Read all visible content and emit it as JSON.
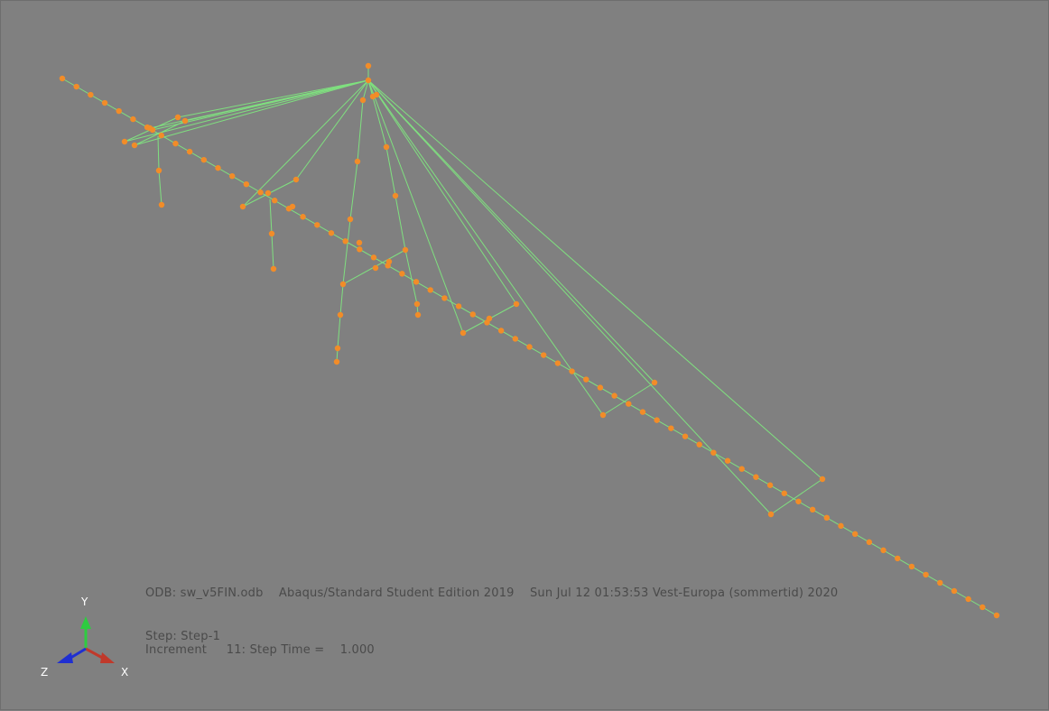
{
  "info": {
    "odb_line": "ODB: sw_v5FIN.odb    Abaqus/Standard Student Edition 2019    Sun Jul 12 01:53:53 Vest-Europa (sommertid) 2020",
    "step_line": "Step: Step-1",
    "increment_line": "Increment     11: Step Time =    1.000"
  },
  "triad": {
    "x_label": "X",
    "y_label": "Y",
    "z_label": "Z",
    "x_color": "#c0392b",
    "y_color": "#2ecc40",
    "z_color": "#1f2fd1"
  },
  "colors": {
    "background": "#808080",
    "element_line": "#7fe07f",
    "node": "#f28c28"
  }
}
